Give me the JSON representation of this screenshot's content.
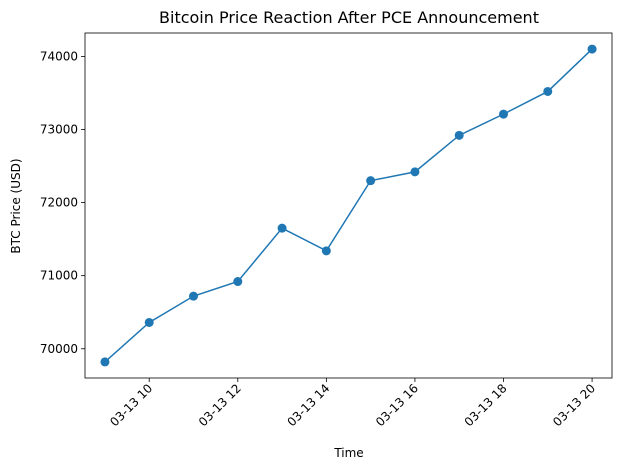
{
  "chart_data": {
    "type": "line",
    "title": "Bitcoin Price Reaction After PCE Announcement",
    "xlabel": "Time",
    "ylabel": "BTC Price (USD)",
    "x_hours": [
      9,
      10,
      11,
      12,
      13,
      14,
      15,
      16,
      17,
      18,
      19,
      20
    ],
    "series": [
      {
        "name": "BTC Price",
        "values": [
          69820,
          70360,
          70720,
          70920,
          71650,
          71340,
          72300,
          72420,
          72920,
          73210,
          73520,
          74100
        ]
      }
    ],
    "xlim": [
      8.55,
      20.45
    ],
    "ylim": [
      69600,
      74320
    ],
    "x_ticks": [
      {
        "value": 10,
        "label": "03-13 10"
      },
      {
        "value": 12,
        "label": "03-13 12"
      },
      {
        "value": 14,
        "label": "03-13 14"
      },
      {
        "value": 16,
        "label": "03-13 16"
      },
      {
        "value": 18,
        "label": "03-13 18"
      },
      {
        "value": 20,
        "label": "03-13 20"
      }
    ],
    "y_ticks": [
      {
        "value": 70000,
        "label": "70000"
      },
      {
        "value": 71000,
        "label": "71000"
      },
      {
        "value": 72000,
        "label": "72000"
      },
      {
        "value": 73000,
        "label": "73000"
      },
      {
        "value": 74000,
        "label": "74000"
      }
    ],
    "grid": false,
    "color": "#1f77b4"
  }
}
